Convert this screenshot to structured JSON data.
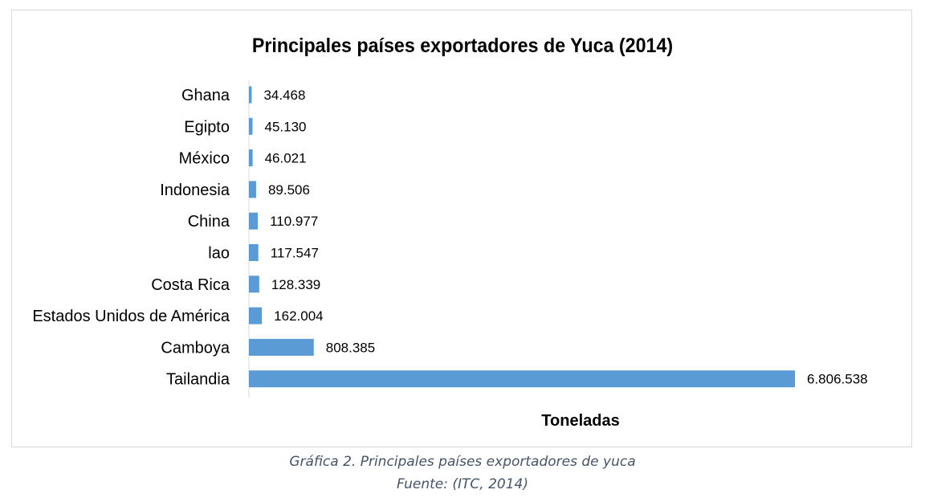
{
  "chart_data": {
    "type": "bar",
    "orientation": "horizontal",
    "title": "Principales países exportadores de Yuca (2014)",
    "xlabel": "Toneladas",
    "ylabel": "",
    "categories": [
      "Ghana",
      "Egipto",
      "México",
      "Indonesia",
      "China",
      "lao",
      "Costa Rica",
      "Estados Unidos de América",
      "Camboya",
      "Tailandia"
    ],
    "values": [
      34468,
      45130,
      46021,
      89506,
      110977,
      117547,
      128339,
      162004,
      808385,
      6806538
    ],
    "value_labels": [
      "34.468",
      "45.130",
      "46.021",
      "89.506",
      "110.977",
      "117.547",
      "128.339",
      "162.004",
      "808.385",
      "6.806.538"
    ],
    "xlim": [
      0,
      6806538
    ],
    "grid": false,
    "legend": "none",
    "bar_color": "#5b9bd5"
  },
  "caption": {
    "line1": "Gráfica 2. Principales países exportadores de yuca",
    "line2": "Fuente: (ITC, 2014)"
  }
}
